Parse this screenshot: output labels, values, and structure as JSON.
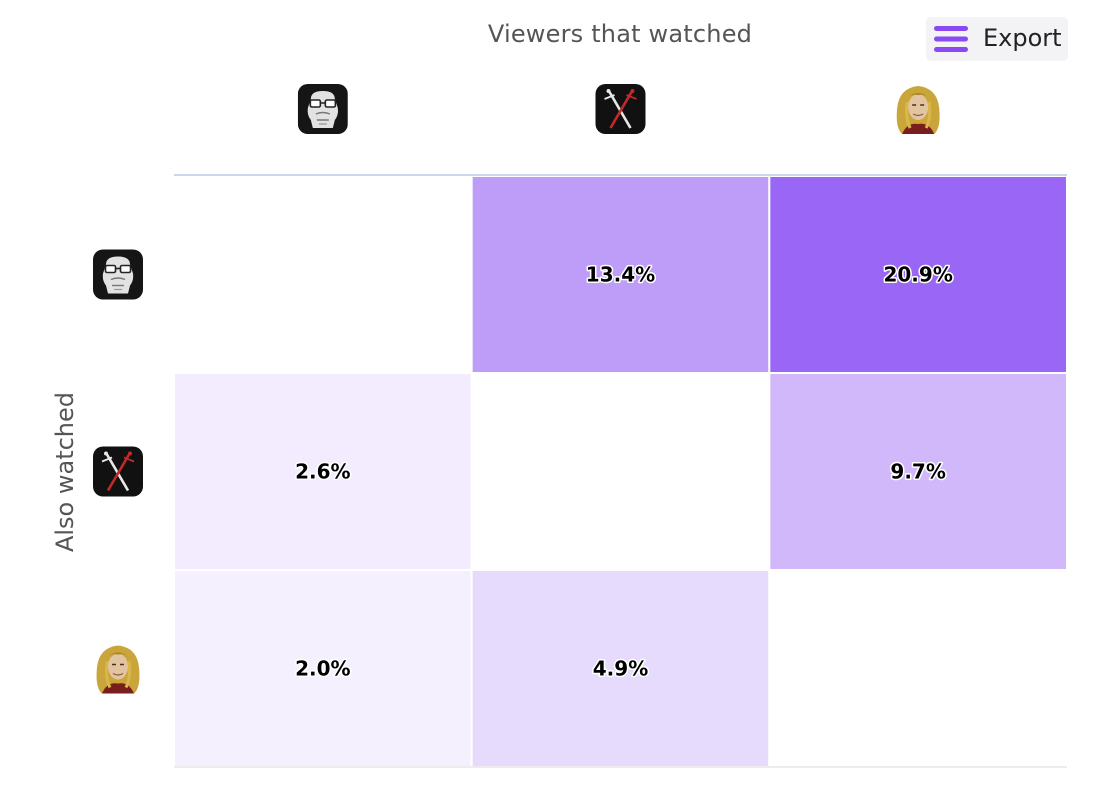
{
  "header": {
    "export_label": "Export",
    "menu_icon": "hamburger-menu-icon"
  },
  "chart_data": {
    "type": "heatmap",
    "xlabel": "Viewers that watched",
    "ylabel": "Also watched",
    "categories_x": [
      "gorilla-glasses-avatar",
      "crossed-swords-avatar",
      "blonde-character-avatar"
    ],
    "categories_y": [
      "gorilla-glasses-avatar",
      "crossed-swords-avatar",
      "blonde-character-avatar"
    ],
    "values": [
      [
        null,
        13.4,
        20.9
      ],
      [
        2.6,
        null,
        9.7
      ],
      [
        2.0,
        4.9,
        null
      ]
    ],
    "labels": [
      [
        "",
        "13.4%",
        "20.9%"
      ],
      [
        "2.6%",
        "",
        "9.7%"
      ],
      [
        "2.0%",
        "4.9%",
        ""
      ]
    ],
    "value_unit": "%",
    "color_min": "#ffffff",
    "color_max": "#9966f6",
    "grid_color": "#ffffff",
    "axis_line_color": "#ccd6eb",
    "legend": "none"
  }
}
